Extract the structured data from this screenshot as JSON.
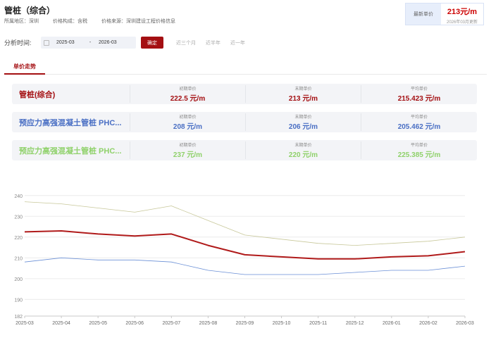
{
  "header": {
    "title": "管桩（综合）",
    "region": "所属地区：深圳",
    "composition": "价格构成：含税",
    "source": "价格来源：深圳建设工程价格信息"
  },
  "latest": {
    "label": "最新单价",
    "price": "213元/m",
    "date": "2026年03月更新"
  },
  "filter": {
    "label": "分析时间:",
    "start": "2025-03",
    "separator": "-",
    "end": "2026-03",
    "confirm": "确定",
    "quick": [
      "近三个月",
      "近半年",
      "近一年"
    ]
  },
  "tabs": [
    "单价走势"
  ],
  "cards": [
    {
      "name": "管桩(综合)",
      "color": "#a40f12",
      "initial_label": "初期单价",
      "initial": "222.5 元/m",
      "final_label": "末期单价",
      "final": "213 元/m",
      "avg_label": "平均单价",
      "avg": "215.423 元/m"
    },
    {
      "name": "预应力高强混凝土管桩 PHC...",
      "color": "#4a6fc4",
      "initial_label": "初期单价",
      "initial": "208 元/m",
      "final_label": "末期单价",
      "final": "206 元/m",
      "avg_label": "平均单价",
      "avg": "205.462 元/m"
    },
    {
      "name": "预应力高强混凝土管桩 PHC...",
      "color": "#8fd16a",
      "initial_label": "初期单价",
      "initial": "237 元/m",
      "final_label": "末期单价",
      "final": "220 元/m",
      "avg_label": "平均单价",
      "avg": "225.385 元/m"
    }
  ],
  "chart_data": {
    "type": "line",
    "categories": [
      "2025-03",
      "2025-04",
      "2025-05",
      "2025-06",
      "2025-07",
      "2025-08",
      "2025-09",
      "2025-10",
      "2025-11",
      "2025-12",
      "2026-01",
      "2026-02",
      "2026-03"
    ],
    "yticks": [
      182,
      190,
      200,
      210,
      220,
      230,
      240
    ],
    "ylim": [
      182,
      245
    ],
    "grid": true,
    "series": [
      {
        "key": "composite",
        "color": "#b01a1a",
        "width": 2,
        "values": [
          222.5,
          223,
          221.5,
          220.5,
          221.5,
          216,
          211.5,
          210.5,
          209.5,
          209.5,
          210.5,
          211,
          213
        ]
      },
      {
        "key": "phc_a",
        "color": "#6a8fd6",
        "width": 0.8,
        "values": [
          208,
          210,
          209,
          209,
          208,
          204,
          202,
          202,
          202,
          203,
          204,
          204,
          206
        ]
      },
      {
        "key": "phc_b",
        "color": "#c8c89a",
        "width": 0.8,
        "values": [
          237,
          236,
          234,
          232,
          235,
          228,
          221,
          219,
          217,
          216,
          217,
          218,
          220
        ]
      }
    ]
  }
}
